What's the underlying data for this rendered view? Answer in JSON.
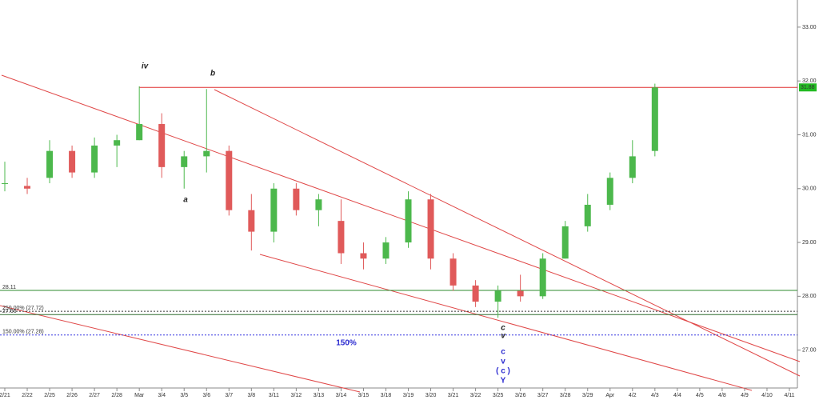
{
  "chart_data": {
    "type": "candlestick",
    "categories": [
      "2/21",
      "2/22",
      "2/25",
      "2/26",
      "2/27",
      "2/28",
      "Mar",
      "3/4",
      "3/5",
      "3/6",
      "3/7",
      "3/8",
      "3/11",
      "3/12",
      "3/13",
      "3/14",
      "3/15",
      "3/18",
      "3/19",
      "3/20",
      "3/21",
      "3/22",
      "3/25",
      "3/26",
      "3/27",
      "3/28",
      "3/29",
      "Apr",
      "4/2",
      "4/3",
      "4/4",
      "4/5",
      "4/8",
      "4/9",
      "4/10",
      "4/11"
    ],
    "open": [
      30.1,
      30.05,
      30.2,
      30.7,
      30.3,
      30.8,
      30.9,
      31.2,
      30.4,
      30.6,
      30.7,
      29.6,
      29.2,
      30.0,
      29.6,
      29.4,
      28.8,
      28.7,
      29.0,
      29.8,
      28.7,
      28.2,
      27.9,
      28.1,
      28.0,
      28.7,
      29.3,
      29.7,
      30.2,
      30.7,
      null,
      null,
      null,
      null,
      null,
      null
    ],
    "high": [
      30.5,
      30.2,
      30.9,
      30.8,
      30.95,
      31.0,
      31.9,
      31.4,
      30.7,
      31.85,
      30.8,
      29.9,
      30.1,
      30.1,
      29.9,
      29.8,
      29.0,
      29.1,
      29.95,
      29.9,
      28.8,
      28.3,
      28.2,
      28.4,
      28.8,
      29.4,
      29.9,
      30.3,
      30.9,
      31.95,
      null,
      null,
      null,
      null,
      null,
      null
    ],
    "low": [
      29.95,
      29.9,
      30.1,
      30.2,
      30.2,
      30.4,
      30.9,
      30.2,
      30.0,
      30.3,
      29.5,
      28.85,
      29.0,
      29.5,
      29.3,
      28.6,
      28.5,
      28.6,
      28.9,
      28.5,
      28.1,
      27.8,
      27.6,
      27.9,
      27.95,
      28.7,
      29.2,
      29.6,
      30.1,
      30.6,
      null,
      null,
      null,
      null,
      null,
      null
    ],
    "close": [
      30.1,
      30.0,
      30.7,
      30.3,
      30.8,
      30.9,
      31.2,
      30.4,
      30.6,
      30.7,
      29.6,
      29.2,
      30.0,
      29.6,
      29.8,
      28.8,
      28.7,
      29.0,
      29.8,
      28.7,
      28.2,
      27.9,
      28.1,
      28.0,
      28.7,
      29.3,
      29.7,
      30.2,
      30.6,
      31.88,
      null,
      null,
      null,
      null,
      null,
      null
    ],
    "up_color": "#4cb84c",
    "down_color": "#e05a5a",
    "ylim": [
      26.4,
      33.4
    ],
    "yticks": [
      {
        "value": 33,
        "label": "33.00"
      },
      {
        "value": 32,
        "label": "32.00"
      },
      {
        "value": 31,
        "label": "31.00"
      },
      {
        "value": 30,
        "label": "30.00"
      },
      {
        "value": 29,
        "label": "29.00"
      },
      {
        "value": 28,
        "label": "28.00"
      },
      {
        "value": 27,
        "label": "27.00"
      }
    ],
    "last_price": {
      "value": 31.88,
      "label": "31.88",
      "color": "#22bb22"
    },
    "levels": [
      {
        "value": 31.88,
        "color": "#e03030",
        "dash": "none",
        "from": "Mar"
      },
      {
        "value": 28.11,
        "label": "28.11",
        "color": "#2e8b2e",
        "dash": "none"
      },
      {
        "value": 27.72,
        "label": "250.00% (27.72)",
        "color": "#333333",
        "dash": "2,2"
      },
      {
        "value": 27.66,
        "label": "27.66",
        "color": "#2e6b2e",
        "dash": "none"
      },
      {
        "value": 27.28,
        "label": "150.00% (27.28)",
        "color": "#3030e0",
        "dash": "2,2"
      }
    ],
    "annotations": [
      "iv",
      "b",
      "a",
      "c",
      "v",
      "150%",
      "c",
      "v",
      "( c )",
      "Y"
    ]
  }
}
